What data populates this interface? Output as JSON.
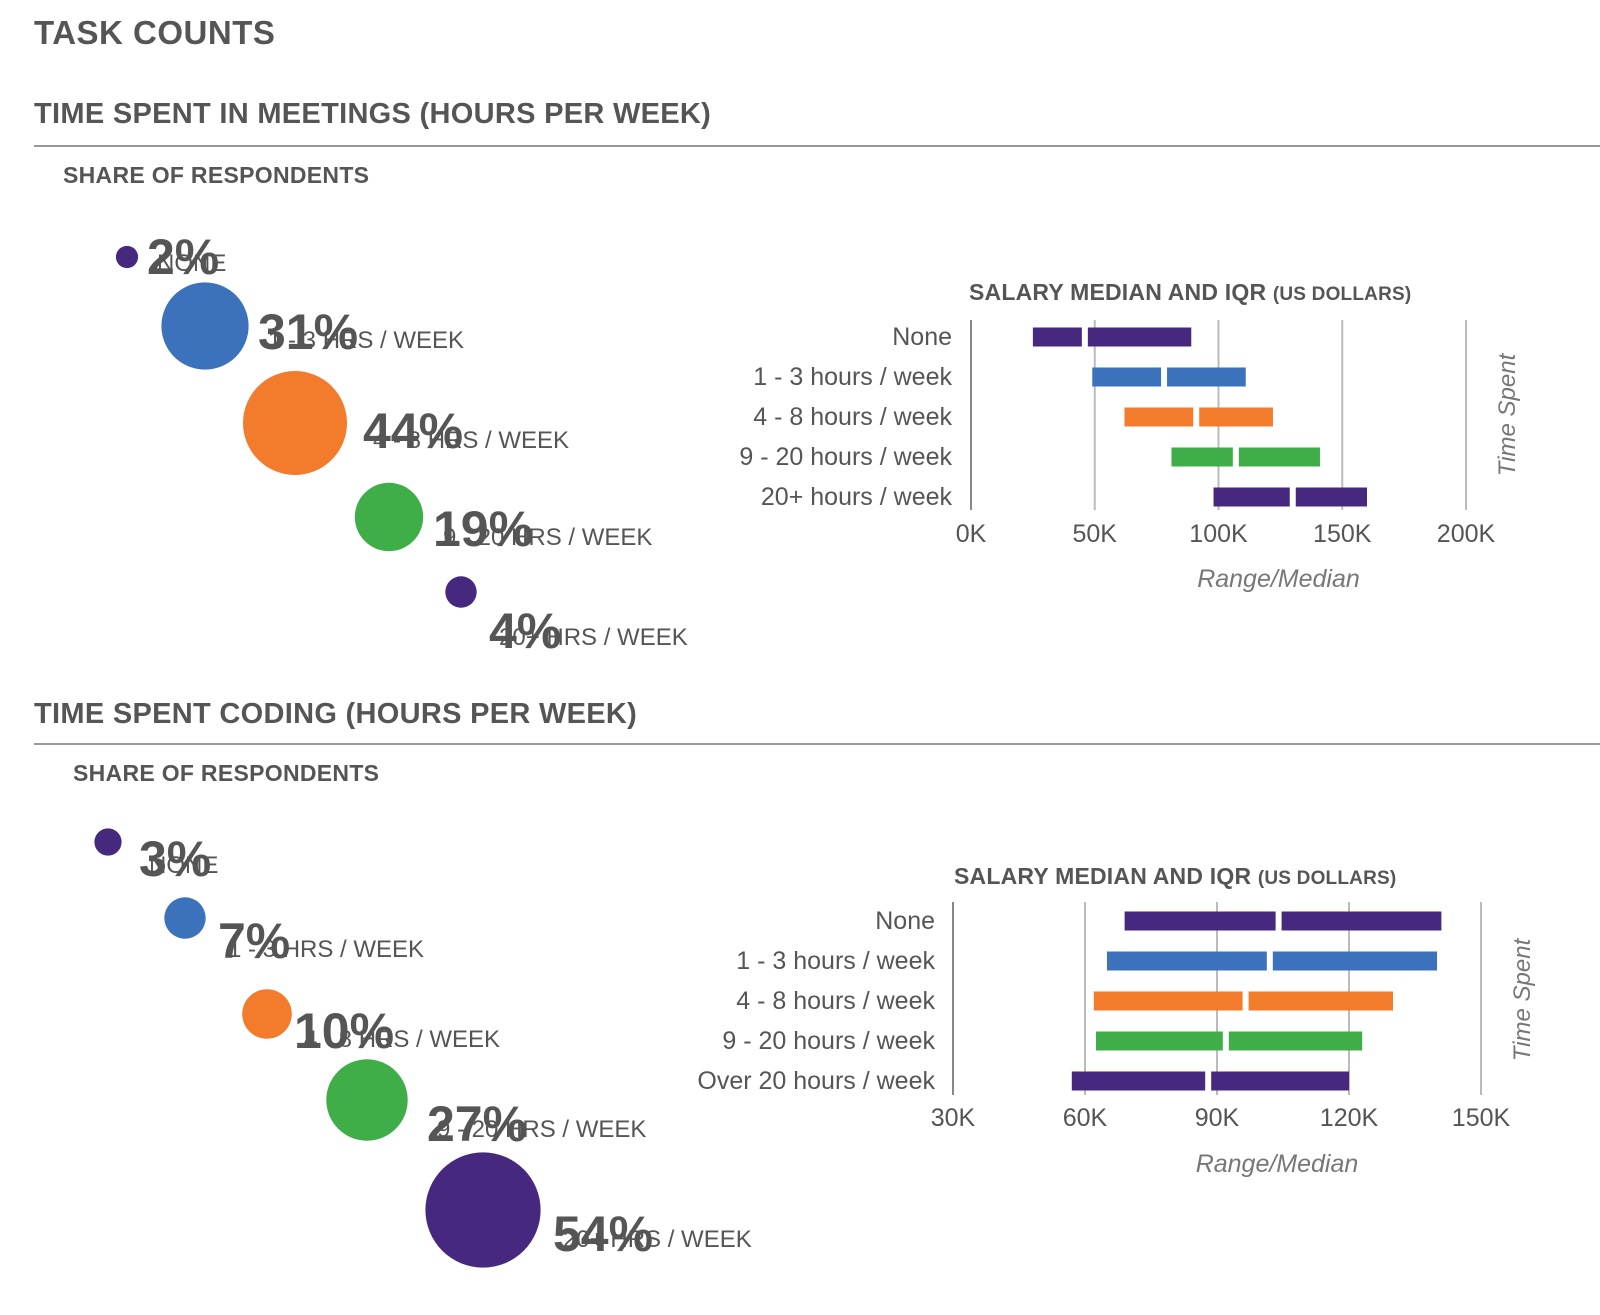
{
  "page_title": "TASK COUNTS",
  "sections": [
    {
      "title": "TIME SPENT IN MEETINGS (HOURS PER WEEK)",
      "share_label": "SHARE OF RESPONDENTS",
      "salary_title": "SALARY MEDIAN AND IQR",
      "salary_title_suffix": "(US DOLLARS)"
    },
    {
      "title": "TIME SPENT CODING (HOURS PER WEEK)",
      "share_label": "SHARE OF RESPONDENTS",
      "salary_title": "SALARY MEDIAN AND IQR",
      "salary_title_suffix": "(US DOLLARS)"
    }
  ],
  "chart_data": [
    {
      "type": "bubble",
      "title": "SHARE OF RESPONDENTS",
      "items": [
        {
          "value_label": "2%",
          "value": 2,
          "category": "NONE",
          "color": "#46287f"
        },
        {
          "value_label": "31%",
          "value": 31,
          "category": "1 - 3 HRS / WEEK",
          "color": "#3b72bb"
        },
        {
          "value_label": "44%",
          "value": 44,
          "category": "4 - 8 HRS / WEEK",
          "color": "#f27b2c"
        },
        {
          "value_label": "19%",
          "value": 19,
          "category": "9 - 20 HRS / WEEK",
          "color": "#3fae49"
        },
        {
          "value_label": "4%",
          "value": 4,
          "category": "20+ HRS / WEEK",
          "color": "#46287f"
        }
      ]
    },
    {
      "type": "range-bar",
      "title": "SALARY MEDIAN AND IQR (US DOLLARS)",
      "xlabel": "Range/Median",
      "ylabel": "Time Spent",
      "xlim": [
        0,
        200000
      ],
      "xticks": [
        0,
        50000,
        100000,
        150000,
        200000
      ],
      "xtick_labels": [
        "0K",
        "50K",
        "100K",
        "150K",
        "200K"
      ],
      "rows": [
        {
          "label": "None",
          "q1": 25000,
          "median": 46000,
          "q3": 89000,
          "color": "#46287f"
        },
        {
          "label": "1 - 3 hours / week",
          "q1": 49000,
          "median": 78000,
          "q3": 111000,
          "color": "#3b72bb"
        },
        {
          "label": "4 - 8 hours / week",
          "q1": 62000,
          "median": 91000,
          "q3": 122000,
          "color": "#f27b2c"
        },
        {
          "label": "9 - 20 hours / week",
          "q1": 81000,
          "median": 107000,
          "q3": 141000,
          "color": "#3fae49"
        },
        {
          "label": "20+ hours / week",
          "q1": 98000,
          "median": 130000,
          "q3": 160000,
          "color": "#46287f"
        }
      ]
    },
    {
      "type": "bubble",
      "title": "SHARE OF RESPONDENTS",
      "items": [
        {
          "value_label": "3%",
          "value": 3,
          "category": "NONE",
          "color": "#46287f"
        },
        {
          "value_label": "7%",
          "value": 7,
          "category": "1 - 3 HRS / WEEK",
          "color": "#3b72bb"
        },
        {
          "value_label": "10%",
          "value": 10,
          "category": "4 - 8 HRS / WEEK",
          "color": "#f27b2c"
        },
        {
          "value_label": "27%",
          "value": 27,
          "category": "9 - 20 HRS / WEEK",
          "color": "#3fae49"
        },
        {
          "value_label": "54%",
          "value": 54,
          "category": "20+ HRS / WEEK",
          "color": "#46287f"
        }
      ]
    },
    {
      "type": "range-bar",
      "title": "SALARY MEDIAN AND IQR (US DOLLARS)",
      "xlabel": "Range/Median",
      "ylabel": "Time Spent",
      "xlim": [
        30000,
        150000
      ],
      "xticks": [
        30000,
        60000,
        90000,
        120000,
        150000
      ],
      "xtick_labels": [
        "30K",
        "60K",
        "90K",
        "120K",
        "150K"
      ],
      "rows": [
        {
          "label": "None",
          "q1": 69000,
          "median": 104000,
          "q3": 141000,
          "color": "#46287f"
        },
        {
          "label": "1 - 3 hours / week",
          "q1": 65000,
          "median": 102000,
          "q3": 140000,
          "color": "#3b72bb"
        },
        {
          "label": "4 - 8 hours / week",
          "q1": 62000,
          "median": 96500,
          "q3": 130000,
          "color": "#f27b2c"
        },
        {
          "label": "9 - 20 hours / week",
          "q1": 62500,
          "median": 92000,
          "q3": 123000,
          "color": "#3fae49"
        },
        {
          "label": "Over 20 hours / week",
          "q1": 57000,
          "median": 88000,
          "q3": 120000,
          "color": "#46287f"
        }
      ]
    }
  ]
}
